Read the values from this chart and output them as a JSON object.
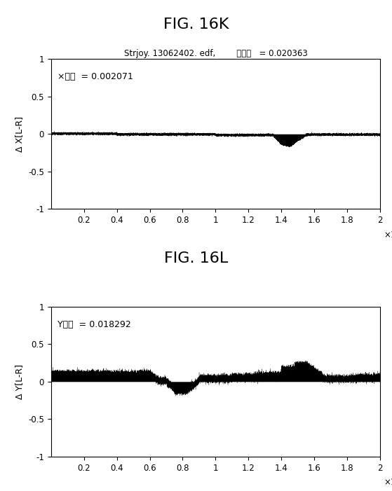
{
  "fig_title_top": "FIG. 16K",
  "fig_title_bottom": "FIG. 16L",
  "subtitle_top": "Strjoy. 13062402. edf,        全分散   = 0.020363",
  "annotation_top": "×分散  = 0.002071",
  "annotation_bottom": "Y分散  = 0.018292",
  "ylabel_top": "Δ X[L-R]",
  "ylabel_bottom": "Δ Y[L-R]",
  "xlim": [
    0,
    20000
  ],
  "ylim": [
    -1,
    1
  ],
  "xticks": [
    2000,
    4000,
    6000,
    8000,
    10000,
    12000,
    14000,
    16000,
    18000,
    20000
  ],
  "xtick_labels": [
    "0.2",
    "0.4",
    "0.6",
    "0.8",
    "1",
    "1.2",
    "1.4",
    "1.6",
    "1.8",
    "2"
  ],
  "yticks": [
    -1,
    -0.5,
    0,
    0.5,
    1
  ],
  "ytick_labels": [
    "-1",
    "-0.5",
    "0",
    "0.5",
    "1"
  ],
  "n_points": 20000,
  "background_color": "#ffffff",
  "signal_color": "#000000",
  "title_fontsize": 16,
  "subtitle_fontsize": 8.5,
  "label_fontsize": 9,
  "tick_fontsize": 8.5,
  "annotation_fontsize": 9
}
